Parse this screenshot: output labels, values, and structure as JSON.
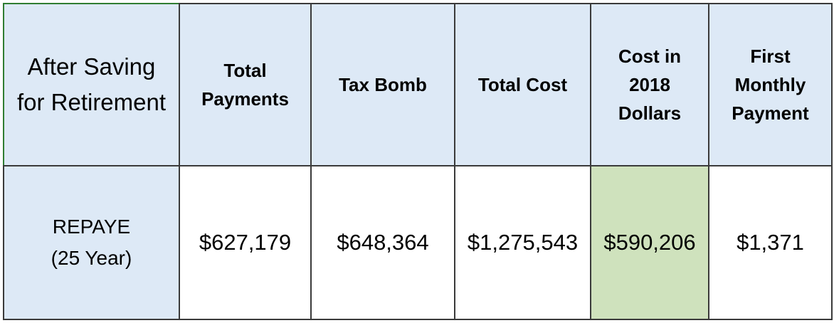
{
  "table": {
    "corner": [
      "After Saving",
      "for Retirement"
    ],
    "headers": [
      [
        "Total",
        "Payments"
      ],
      [
        "Tax Bomb"
      ],
      [
        "Total Cost"
      ],
      [
        "Cost in",
        "2018",
        "Dollars"
      ],
      [
        "First",
        "Monthly",
        "Payment"
      ]
    ],
    "row": {
      "label": [
        "REPAYE",
        "(25 Year)"
      ],
      "values": [
        "$627,179",
        "$648,364",
        "$1,275,543",
        "$590,206",
        "$1,371"
      ]
    },
    "highlight_color": "#cfe2bd",
    "header_color": "#dde9f6"
  }
}
